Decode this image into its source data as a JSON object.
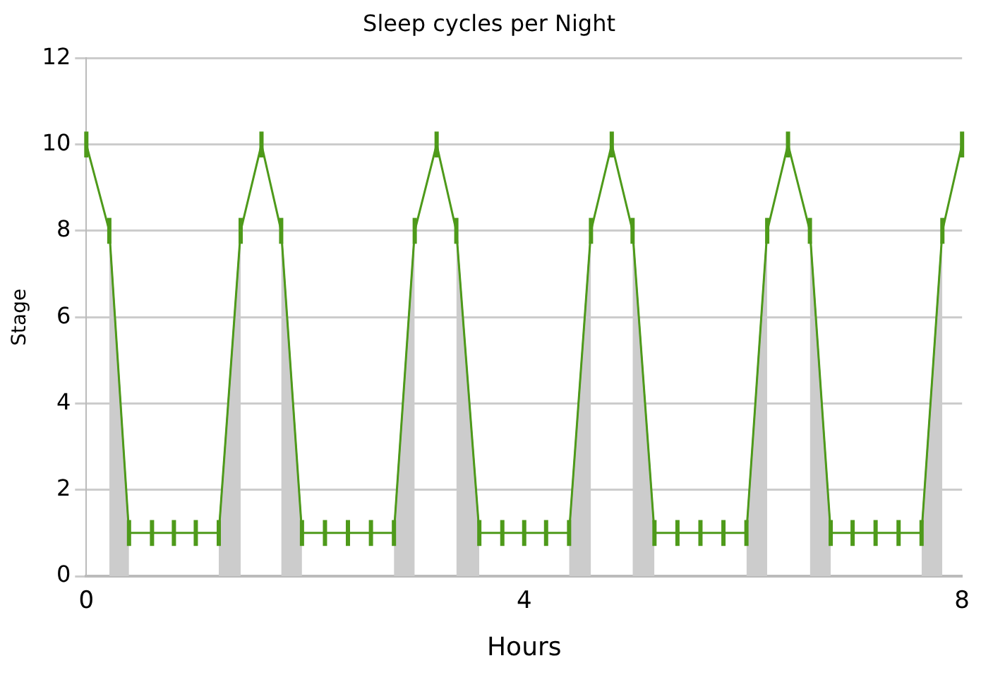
{
  "chart_data": {
    "type": "line",
    "title": "Sleep cycles per Night",
    "xlabel": "Hours",
    "ylabel": "Stage",
    "xlim": [
      0,
      8
    ],
    "xticks": [
      0,
      4,
      8
    ],
    "ylim": [
      0,
      12
    ],
    "yticks": [
      0,
      2,
      4,
      6,
      8,
      10,
      12
    ],
    "grid": "y",
    "series": [
      {
        "type": "area",
        "color": "#cccccc",
        "x": [
          0.21,
          0.39,
          0.8,
          1.21,
          1.41,
          1.6,
          1.78,
          1.97,
          2.39,
          2.81,
          3.0,
          3.2,
          3.38,
          3.59,
          4.0,
          4.41,
          4.61,
          4.8,
          4.99,
          5.19,
          5.61,
          6.03,
          6.22,
          6.41,
          6.61,
          6.8,
          7.21,
          7.63,
          7.82
        ],
        "values": [
          8,
          1,
          null,
          1,
          8,
          null,
          8,
          1,
          null,
          1,
          8,
          null,
          8,
          1,
          null,
          1,
          8,
          null,
          8,
          1,
          null,
          1,
          8,
          null,
          8,
          1,
          null,
          1,
          8
        ]
      },
      {
        "color": "#4e9a1a",
        "x": [
          0,
          0.21,
          0.39,
          0.6,
          0.8,
          1.0,
          1.21,
          1.41,
          1.6,
          1.78,
          1.97,
          2.18,
          2.39,
          2.6,
          2.81,
          3.0,
          3.2,
          3.38,
          3.59,
          3.8,
          4.0,
          4.2,
          4.41,
          4.61,
          4.8,
          4.99,
          5.19,
          5.4,
          5.61,
          5.82,
          6.03,
          6.22,
          6.41,
          6.61,
          6.8,
          7.0,
          7.21,
          7.42,
          7.63,
          7.82,
          8.0
        ],
        "values": [
          10,
          8,
          1,
          1,
          1,
          1,
          1,
          8,
          10,
          8,
          1,
          1,
          1,
          1,
          1,
          8,
          10,
          8,
          1,
          1,
          1,
          1,
          1,
          8,
          10,
          8,
          1,
          1,
          1,
          1,
          1,
          8,
          10,
          8,
          1,
          1,
          1,
          1,
          1,
          8,
          10
        ],
        "errors": [
          0.3,
          0.3,
          0.3,
          0.3,
          0.3,
          0.3,
          0.3,
          0.3,
          0.3,
          0.3,
          0.3,
          0.3,
          0.3,
          0.3,
          0.3,
          0.3,
          0.3,
          0.3,
          0.3,
          0.3,
          0.3,
          0.3,
          0.3,
          0.3,
          0.3,
          0.3,
          0.3,
          0.3,
          0.3,
          0.3,
          0.3,
          0.3,
          0.3,
          0.3,
          0.3,
          0.3,
          0.3,
          0.3,
          0.3,
          0.3,
          0.3
        ]
      }
    ]
  }
}
